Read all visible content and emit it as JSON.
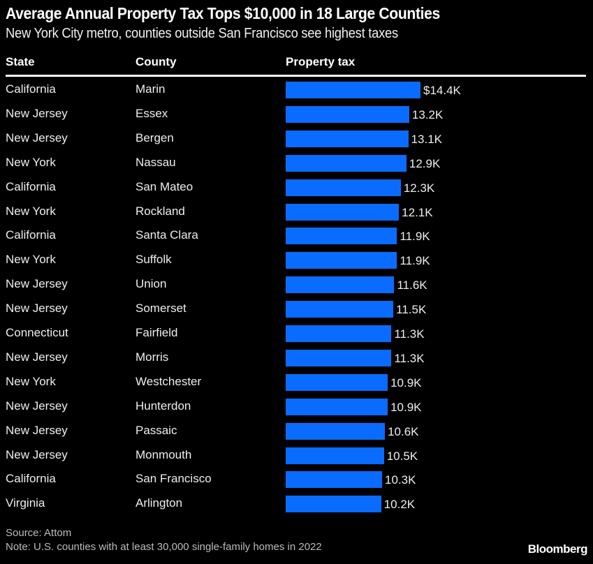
{
  "chart_data": {
    "type": "bar",
    "orientation": "horizontal",
    "title": "Average Annual Property Tax Tops $10,000 in 18 Large Counties",
    "subtitle": "New York City metro, counties outside San Francisco see highest taxes",
    "columns": [
      "State",
      "County",
      "Property tax"
    ],
    "bar_color": "#0a6cff",
    "unit_prefix": "$",
    "unit_suffix": "K",
    "rows": [
      {
        "state": "California",
        "county": "Marin",
        "value": 14.4,
        "label": "$14.4K"
      },
      {
        "state": "New Jersey",
        "county": "Essex",
        "value": 13.2,
        "label": "13.2K"
      },
      {
        "state": "New Jersey",
        "county": "Bergen",
        "value": 13.1,
        "label": "13.1K"
      },
      {
        "state": "New York",
        "county": "Nassau",
        "value": 12.9,
        "label": "12.9K"
      },
      {
        "state": "California",
        "county": "San Mateo",
        "value": 12.3,
        "label": "12.3K"
      },
      {
        "state": "New York",
        "county": "Rockland",
        "value": 12.1,
        "label": "12.1K"
      },
      {
        "state": "California",
        "county": "Santa Clara",
        "value": 11.9,
        "label": "11.9K"
      },
      {
        "state": "New York",
        "county": "Suffolk",
        "value": 11.9,
        "label": "11.9K"
      },
      {
        "state": "New Jersey",
        "county": "Union",
        "value": 11.6,
        "label": "11.6K"
      },
      {
        "state": "New Jersey",
        "county": "Somerset",
        "value": 11.5,
        "label": "11.5K"
      },
      {
        "state": "Connecticut",
        "county": "Fairfield",
        "value": 11.3,
        "label": "11.3K"
      },
      {
        "state": "New Jersey",
        "county": "Morris",
        "value": 11.3,
        "label": "11.3K"
      },
      {
        "state": "New York",
        "county": "Westchester",
        "value": 10.9,
        "label": "10.9K"
      },
      {
        "state": "New Jersey",
        "county": "Hunterdon",
        "value": 10.9,
        "label": "10.9K"
      },
      {
        "state": "New Jersey",
        "county": "Passaic",
        "value": 10.6,
        "label": "10.6K"
      },
      {
        "state": "New Jersey",
        "county": "Monmouth",
        "value": 10.5,
        "label": "10.5K"
      },
      {
        "state": "California",
        "county": "San Francisco",
        "value": 10.3,
        "label": "10.3K"
      },
      {
        "state": "Virginia",
        "county": "Arlington",
        "value": 10.2,
        "label": "10.2K"
      }
    ],
    "source": "Source: Attom",
    "note": "Note: U.S. counties with at least 30,000 single-family homes in 2022",
    "brand": "Bloomberg"
  }
}
